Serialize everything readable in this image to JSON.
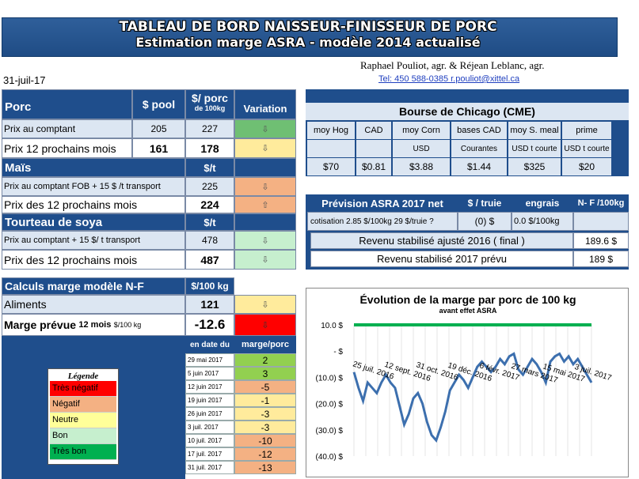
{
  "banner": {
    "line1": "TABLEAU DE BORD NAISSEUR-FINISSEUR DE PORC",
    "line2": "Estimation marge ASRA - modèle 2014 actualisé"
  },
  "authors": "Raphael Pouliot, agr.   &   Réjean Leblanc, agr.",
  "contact": "Tel:    450 588-0385   r.pouliot@xittel.ca",
  "date": "31-juil-17",
  "porc": {
    "title": "Porc",
    "col_pool": "$ pool",
    "col_porc1": "$/ porc",
    "col_porc2": "de 100kg",
    "col_var": "Variation",
    "r1_label": "Prix au comptant",
    "r1_pool": "205",
    "r1_val": "227",
    "r2_label": "Prix 12 prochains mois",
    "r2_pool": "161",
    "r2_val": "178"
  },
  "mais": {
    "title": "Maïs",
    "unit": "$/t",
    "r1_label": "Prix au comptant  FOB + 15 $ /t transport",
    "r1_val": "225",
    "r2_label": "Prix des 12 prochains mois",
    "r2_val": "224"
  },
  "soya": {
    "title": "Tourteau de soya",
    "unit": "$/t",
    "r1_label": "Prix au comptant  + 15 $/ t  transport",
    "r1_val": "478",
    "r2_label": "Prix des 12 prochains mois",
    "r2_val": "487"
  },
  "calc": {
    "title": "Calculs marge  modèle N-F",
    "unit": "$/100 kg",
    "r1_label": "Aliments",
    "r1_val": "121",
    "r2_label": "Marge prévue",
    "r2_sub": "12 mois",
    "r2_unit": "$/100 kg",
    "r2_val": "-12.6"
  },
  "history": {
    "col_date": "en date du",
    "col_marge": "marge/porc",
    "rows": [
      {
        "date": "29 mai 2017",
        "val": "2",
        "color": "#92d050"
      },
      {
        "date": "5 juin 2017",
        "val": "3",
        "color": "#92d050"
      },
      {
        "date": "12 juin 2017",
        "val": "-5",
        "color": "#f4b183"
      },
      {
        "date": "19 juin 2017",
        "val": "-1",
        "color": "#ffeb9c"
      },
      {
        "date": "26 juin 2017",
        "val": "-3",
        "color": "#ffeb9c"
      },
      {
        "date": "3 juil. 2017",
        "val": "-3",
        "color": "#ffeb9c"
      },
      {
        "date": "10 juil. 2017",
        "val": "-10",
        "color": "#f4b183"
      },
      {
        "date": "17 juil. 2017",
        "val": "-12",
        "color": "#f4b183"
      },
      {
        "date": "31 juil. 2017",
        "val": "-13",
        "color": "#f4b183"
      }
    ]
  },
  "legend": {
    "title": "Légende",
    "items": [
      {
        "label": "Très négatif",
        "color": "#ff0000"
      },
      {
        "label": "Négatif",
        "color": "#f4b183"
      },
      {
        "label": "Neutre",
        "color": "#ffff99"
      },
      {
        "label": "Bon",
        "color": "#c6efce"
      },
      {
        "label": "Très bon",
        "color": "#00b050"
      }
    ]
  },
  "cme": {
    "title": "Bourse de Chicago (CME)",
    "cols": [
      {
        "h": "moy Hog",
        "u": "",
        "v": "$70"
      },
      {
        "h": "CAD",
        "u": "",
        "v": "$0.81"
      },
      {
        "h": "moy Corn",
        "u": "USD",
        "v": "$3.88"
      },
      {
        "h": "bases CAD",
        "u": "Courantes",
        "v": "$1.44"
      },
      {
        "h": "moy S. meal",
        "u": "USD t courte",
        "v": "$325"
      },
      {
        "h": "prime",
        "u": "USD t courte",
        "v": "$20"
      }
    ]
  },
  "asra": {
    "title": "Prévision ASRA 2017 net",
    "col_truie": "$ / truie",
    "col_engrais": "engrais",
    "col_nf": "N- F /100kg",
    "cotisation": "cotisation 2.85 $/100kg  29 $/truie ?",
    "truie_val": "(0) $",
    "engrais_val": "0.0 $/100kg",
    "rev2016_label": "Revenu stabilisé ajusté 2016 ( final )",
    "rev2016_val": "189.6 $",
    "rev2017_label": "Revenu stabilisé 2017 prévu",
    "rev2017_val": "189 $"
  },
  "arrows": {
    "down": "⇩",
    "up": "⇧",
    "down_red": "⇩"
  },
  "chart_data": {
    "type": "line",
    "title": "Évolution de la marge par porc de 100 kg",
    "subtitle": "avant effet ASRA",
    "yticks": [
      "10.0 $",
      "- $",
      "(10.0) $",
      "(20.0) $",
      "(30.0) $",
      "(40.0) $"
    ],
    "ylim": [
      -40,
      10
    ],
    "xlabels": [
      "25 juil. 2016",
      "12 sept. 2016",
      "31 oct. 2016",
      "19 déc. 2016",
      "6 févr. 2017",
      "27 mars 2017",
      "15 mai 2017",
      "3 juil. 2017"
    ],
    "series": [
      {
        "color": "#00b050",
        "values": [
          10,
          10,
          10,
          10,
          10,
          10,
          10,
          10,
          10,
          10,
          10,
          10,
          10,
          10,
          10,
          10,
          10,
          10,
          10,
          10,
          10,
          10,
          10,
          10,
          10,
          10,
          10,
          10,
          10,
          10,
          10,
          10,
          10,
          10,
          10,
          10,
          10,
          10,
          10,
          10,
          10,
          10,
          10,
          10,
          10,
          10,
          10,
          10,
          10,
          10,
          10,
          10,
          10
        ]
      },
      {
        "color": "#3c6fae",
        "values": [
          -8,
          -14,
          -19,
          -12,
          -14,
          -16,
          -12,
          -9,
          -12,
          -14,
          -21,
          -28,
          -24,
          -18,
          -16,
          -20,
          -27,
          -32,
          -34,
          -29,
          -23,
          -15,
          -12,
          -9,
          -11,
          -14,
          -10,
          -6,
          -4,
          -6,
          -8,
          -6,
          -3,
          -5,
          -2,
          -1,
          -7,
          -9,
          -6,
          -3,
          -5,
          -8,
          -12,
          -4,
          -2,
          -1,
          -4,
          -2,
          -5,
          -3,
          -6,
          -9,
          -12
        ]
      }
    ]
  }
}
